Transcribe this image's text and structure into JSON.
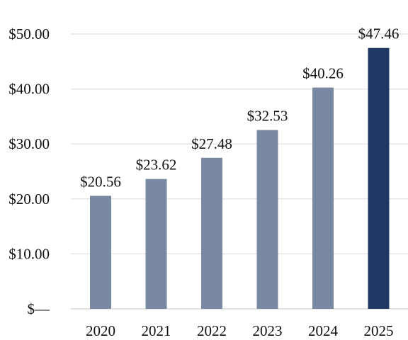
{
  "chart_data": {
    "type": "bar",
    "categories": [
      "2020",
      "2021",
      "2022",
      "2023",
      "2024",
      "2025"
    ],
    "values": [
      20.56,
      23.62,
      27.48,
      32.53,
      40.26,
      47.46
    ],
    "data_labels": [
      "$20.56",
      "$23.62",
      "$27.48",
      "$32.53",
      "$40.26",
      "$47.46"
    ],
    "highlight_index": 5,
    "ylim": [
      0,
      50
    ],
    "yticks": [
      0,
      10,
      20,
      30,
      40,
      50
    ],
    "ytick_labels": [
      "$—",
      "$10.00",
      "$20.00",
      "$30.00",
      "$40.00",
      "$50.00"
    ],
    "grid": true,
    "title": "",
    "xlabel": "",
    "ylabel": "",
    "colors": {
      "bar": "#7a89a3",
      "highlight": "#1f3864",
      "grid": "#e6e6e6"
    }
  }
}
